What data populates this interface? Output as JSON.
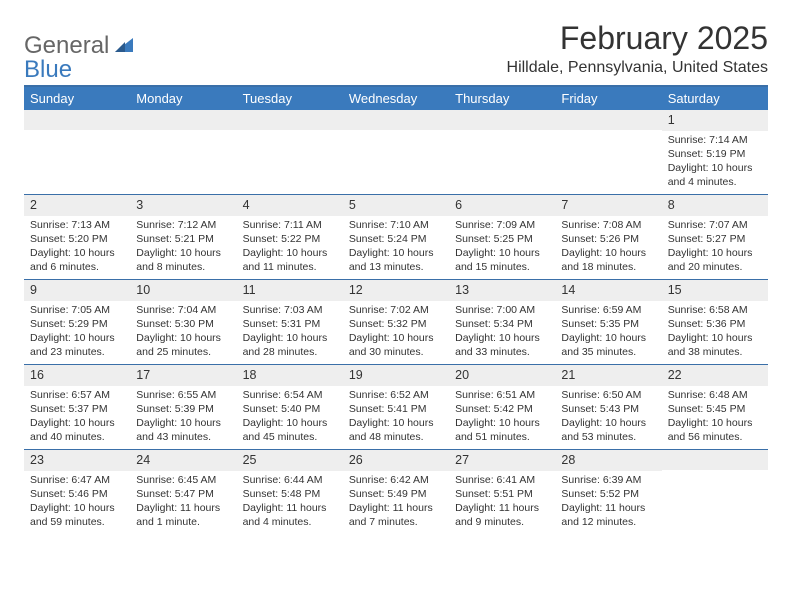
{
  "brand": {
    "part1": "General",
    "part2": "Blue"
  },
  "title": "February 2025",
  "location": "Hilldale, Pennsylvania, United States",
  "colors": {
    "header_bg": "#3a7abd",
    "divider": "#3a6fa8",
    "num_bar_bg": "#eeeeee",
    "text": "#333333",
    "logo_gray": "#666666"
  },
  "weekdays": [
    "Sunday",
    "Monday",
    "Tuesday",
    "Wednesday",
    "Thursday",
    "Friday",
    "Saturday"
  ],
  "weeks": [
    [
      {
        "n": "",
        "sunrise": "",
        "sunset": "",
        "daylight": ""
      },
      {
        "n": "",
        "sunrise": "",
        "sunset": "",
        "daylight": ""
      },
      {
        "n": "",
        "sunrise": "",
        "sunset": "",
        "daylight": ""
      },
      {
        "n": "",
        "sunrise": "",
        "sunset": "",
        "daylight": ""
      },
      {
        "n": "",
        "sunrise": "",
        "sunset": "",
        "daylight": ""
      },
      {
        "n": "",
        "sunrise": "",
        "sunset": "",
        "daylight": ""
      },
      {
        "n": "1",
        "sunrise": "Sunrise: 7:14 AM",
        "sunset": "Sunset: 5:19 PM",
        "daylight": "Daylight: 10 hours and 4 minutes."
      }
    ],
    [
      {
        "n": "2",
        "sunrise": "Sunrise: 7:13 AM",
        "sunset": "Sunset: 5:20 PM",
        "daylight": "Daylight: 10 hours and 6 minutes."
      },
      {
        "n": "3",
        "sunrise": "Sunrise: 7:12 AM",
        "sunset": "Sunset: 5:21 PM",
        "daylight": "Daylight: 10 hours and 8 minutes."
      },
      {
        "n": "4",
        "sunrise": "Sunrise: 7:11 AM",
        "sunset": "Sunset: 5:22 PM",
        "daylight": "Daylight: 10 hours and 11 minutes."
      },
      {
        "n": "5",
        "sunrise": "Sunrise: 7:10 AM",
        "sunset": "Sunset: 5:24 PM",
        "daylight": "Daylight: 10 hours and 13 minutes."
      },
      {
        "n": "6",
        "sunrise": "Sunrise: 7:09 AM",
        "sunset": "Sunset: 5:25 PM",
        "daylight": "Daylight: 10 hours and 15 minutes."
      },
      {
        "n": "7",
        "sunrise": "Sunrise: 7:08 AM",
        "sunset": "Sunset: 5:26 PM",
        "daylight": "Daylight: 10 hours and 18 minutes."
      },
      {
        "n": "8",
        "sunrise": "Sunrise: 7:07 AM",
        "sunset": "Sunset: 5:27 PM",
        "daylight": "Daylight: 10 hours and 20 minutes."
      }
    ],
    [
      {
        "n": "9",
        "sunrise": "Sunrise: 7:05 AM",
        "sunset": "Sunset: 5:29 PM",
        "daylight": "Daylight: 10 hours and 23 minutes."
      },
      {
        "n": "10",
        "sunrise": "Sunrise: 7:04 AM",
        "sunset": "Sunset: 5:30 PM",
        "daylight": "Daylight: 10 hours and 25 minutes."
      },
      {
        "n": "11",
        "sunrise": "Sunrise: 7:03 AM",
        "sunset": "Sunset: 5:31 PM",
        "daylight": "Daylight: 10 hours and 28 minutes."
      },
      {
        "n": "12",
        "sunrise": "Sunrise: 7:02 AM",
        "sunset": "Sunset: 5:32 PM",
        "daylight": "Daylight: 10 hours and 30 minutes."
      },
      {
        "n": "13",
        "sunrise": "Sunrise: 7:00 AM",
        "sunset": "Sunset: 5:34 PM",
        "daylight": "Daylight: 10 hours and 33 minutes."
      },
      {
        "n": "14",
        "sunrise": "Sunrise: 6:59 AM",
        "sunset": "Sunset: 5:35 PM",
        "daylight": "Daylight: 10 hours and 35 minutes."
      },
      {
        "n": "15",
        "sunrise": "Sunrise: 6:58 AM",
        "sunset": "Sunset: 5:36 PM",
        "daylight": "Daylight: 10 hours and 38 minutes."
      }
    ],
    [
      {
        "n": "16",
        "sunrise": "Sunrise: 6:57 AM",
        "sunset": "Sunset: 5:37 PM",
        "daylight": "Daylight: 10 hours and 40 minutes."
      },
      {
        "n": "17",
        "sunrise": "Sunrise: 6:55 AM",
        "sunset": "Sunset: 5:39 PM",
        "daylight": "Daylight: 10 hours and 43 minutes."
      },
      {
        "n": "18",
        "sunrise": "Sunrise: 6:54 AM",
        "sunset": "Sunset: 5:40 PM",
        "daylight": "Daylight: 10 hours and 45 minutes."
      },
      {
        "n": "19",
        "sunrise": "Sunrise: 6:52 AM",
        "sunset": "Sunset: 5:41 PM",
        "daylight": "Daylight: 10 hours and 48 minutes."
      },
      {
        "n": "20",
        "sunrise": "Sunrise: 6:51 AM",
        "sunset": "Sunset: 5:42 PM",
        "daylight": "Daylight: 10 hours and 51 minutes."
      },
      {
        "n": "21",
        "sunrise": "Sunrise: 6:50 AM",
        "sunset": "Sunset: 5:43 PM",
        "daylight": "Daylight: 10 hours and 53 minutes."
      },
      {
        "n": "22",
        "sunrise": "Sunrise: 6:48 AM",
        "sunset": "Sunset: 5:45 PM",
        "daylight": "Daylight: 10 hours and 56 minutes."
      }
    ],
    [
      {
        "n": "23",
        "sunrise": "Sunrise: 6:47 AM",
        "sunset": "Sunset: 5:46 PM",
        "daylight": "Daylight: 10 hours and 59 minutes."
      },
      {
        "n": "24",
        "sunrise": "Sunrise: 6:45 AM",
        "sunset": "Sunset: 5:47 PM",
        "daylight": "Daylight: 11 hours and 1 minute."
      },
      {
        "n": "25",
        "sunrise": "Sunrise: 6:44 AM",
        "sunset": "Sunset: 5:48 PM",
        "daylight": "Daylight: 11 hours and 4 minutes."
      },
      {
        "n": "26",
        "sunrise": "Sunrise: 6:42 AM",
        "sunset": "Sunset: 5:49 PM",
        "daylight": "Daylight: 11 hours and 7 minutes."
      },
      {
        "n": "27",
        "sunrise": "Sunrise: 6:41 AM",
        "sunset": "Sunset: 5:51 PM",
        "daylight": "Daylight: 11 hours and 9 minutes."
      },
      {
        "n": "28",
        "sunrise": "Sunrise: 6:39 AM",
        "sunset": "Sunset: 5:52 PM",
        "daylight": "Daylight: 11 hours and 12 minutes."
      },
      {
        "n": "",
        "sunrise": "",
        "sunset": "",
        "daylight": ""
      }
    ]
  ]
}
